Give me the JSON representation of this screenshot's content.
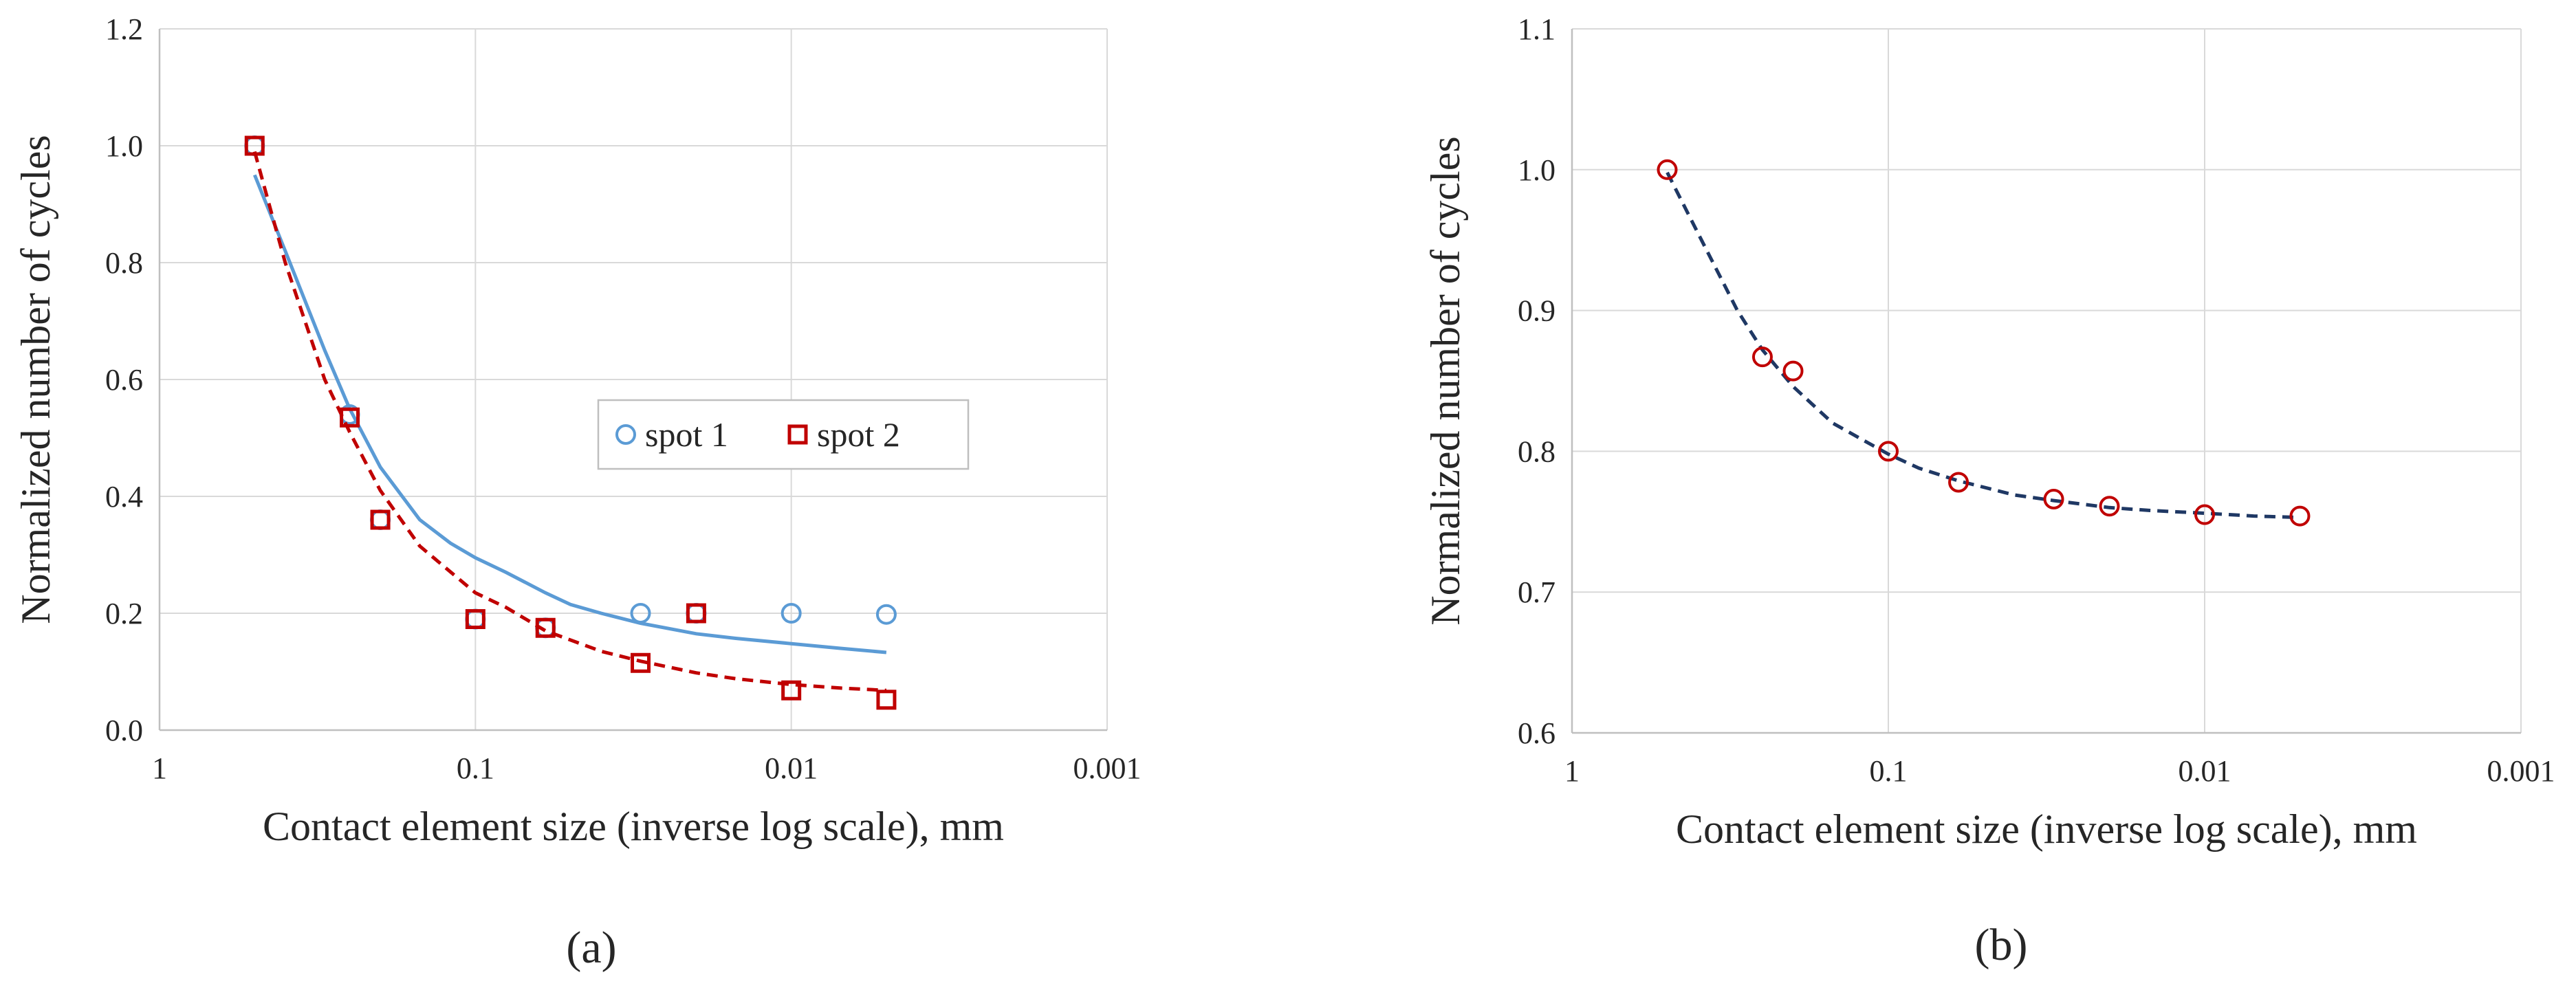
{
  "chart_data": [
    {
      "type": "scatter",
      "xscale": "log-inverse",
      "xlabel": "Contact element size (inverse log scale), mm",
      "ylabel": "Normalized number of cycles",
      "xlim": [
        1,
        0.001
      ],
      "ylim": [
        0,
        1.2
      ],
      "x_ticks": [
        1,
        0.1,
        0.01,
        0.001
      ],
      "x_tick_labels": [
        "1",
        "0.1",
        "0.01",
        "0.001"
      ],
      "y_ticks": [
        0,
        0.2,
        0.4,
        0.6,
        0.8,
        1.0,
        1.2
      ],
      "y_tick_labels": [
        "0.0",
        "0.2",
        "0.4",
        "0.6",
        "0.8",
        "1.0",
        "1.2"
      ],
      "grid": true,
      "legend_position": "center-right",
      "caption": "(a)",
      "series": [
        {
          "name": "spot 1",
          "marker": "circle",
          "color": "#5b9bd5",
          "x": [
            0.5,
            0.25,
            0.2,
            0.1,
            0.06,
            0.03,
            0.02,
            0.01,
            0.005
          ],
          "y": [
            1.0,
            0.54,
            0.36,
            0.19,
            0.175,
            0.2,
            0.2,
            0.2,
            0.198
          ],
          "fit": {
            "style": "solid",
            "x": [
              0.5,
              0.4,
              0.3,
              0.25,
              0.2,
              0.15,
              0.12,
              0.1,
              0.08,
              0.06,
              0.05,
              0.04,
              0.03,
              0.02,
              0.015,
              0.01,
              0.007,
              0.005
            ],
            "y": [
              0.95,
              0.82,
              0.65,
              0.55,
              0.45,
              0.36,
              0.32,
              0.295,
              0.27,
              0.235,
              0.215,
              0.2,
              0.183,
              0.165,
              0.157,
              0.148,
              0.14,
              0.133
            ]
          }
        },
        {
          "name": "spot 2",
          "marker": "square",
          "color": "#c00000",
          "x": [
            0.5,
            0.25,
            0.2,
            0.1,
            0.06,
            0.03,
            0.02,
            0.01,
            0.005
          ],
          "y": [
            1.0,
            0.535,
            0.36,
            0.19,
            0.175,
            0.115,
            0.2,
            0.068,
            0.052
          ],
          "fit": {
            "style": "dashed",
            "x": [
              0.5,
              0.45,
              0.4,
              0.3,
              0.25,
              0.2,
              0.15,
              0.1,
              0.08,
              0.06,
              0.04,
              0.03,
              0.02,
              0.015,
              0.01,
              0.007,
              0.005
            ],
            "y": [
              0.99,
              0.9,
              0.8,
              0.6,
              0.51,
              0.41,
              0.315,
              0.235,
              0.21,
              0.17,
              0.135,
              0.118,
              0.098,
              0.088,
              0.078,
              0.072,
              0.068
            ]
          }
        }
      ]
    },
    {
      "type": "scatter",
      "xscale": "log-inverse",
      "xlabel": "Contact element size (inverse log scale), mm",
      "ylabel": "Normalized number of cycles",
      "xlim": [
        1,
        0.001
      ],
      "ylim": [
        0.6,
        1.1
      ],
      "x_ticks": [
        1,
        0.1,
        0.01,
        0.001
      ],
      "x_tick_labels": [
        "1",
        "0.1",
        "0.01",
        "0.001"
      ],
      "y_ticks": [
        0.6,
        0.7,
        0.8,
        0.9,
        1.0,
        1.1
      ],
      "y_tick_labels": [
        "0.6",
        "0.7",
        "0.8",
        "0.9",
        "1.0",
        "1.1"
      ],
      "grid": true,
      "caption": "(b)",
      "series": [
        {
          "name": "",
          "marker": "circle",
          "color": "#c00000",
          "x": [
            0.5,
            0.25,
            0.2,
            0.1,
            0.06,
            0.03,
            0.02,
            0.01,
            0.005
          ],
          "y": [
            1.0,
            0.867,
            0.857,
            0.8,
            0.778,
            0.766,
            0.761,
            0.755,
            0.754
          ],
          "fit": {
            "style": "dashed",
            "color": "#1f3864",
            "x": [
              0.5,
              0.4,
              0.3,
              0.25,
              0.2,
              0.15,
              0.1,
              0.08,
              0.06,
              0.04,
              0.03,
              0.02,
              0.015,
              0.01,
              0.007,
              0.005
            ],
            "y": [
              0.998,
              0.955,
              0.9,
              0.872,
              0.846,
              0.82,
              0.798,
              0.788,
              0.779,
              0.769,
              0.765,
              0.76,
              0.758,
              0.756,
              0.754,
              0.753
            ]
          }
        }
      ]
    }
  ]
}
